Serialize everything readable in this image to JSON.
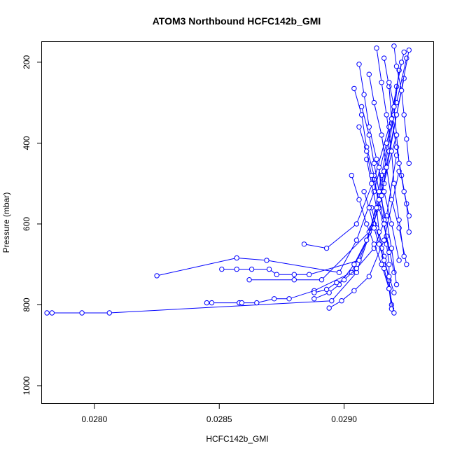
{
  "chart_data": {
    "type": "line",
    "title": "ATOM3 Northbound HCFC142b_GMI",
    "xlabel": "HCFC142b_GMI",
    "ylabel": "Pressure (mbar)",
    "xlim": [
      0.02779,
      0.02936
    ],
    "ylim": [
      1045,
      150
    ],
    "y_reversed": true,
    "xticks": [
      {
        "value": 0.028,
        "label": "0.0280"
      },
      {
        "value": 0.0285,
        "label": "0.0285"
      },
      {
        "value": 0.029,
        "label": "0.0290"
      }
    ],
    "yticks": [
      {
        "value": 200,
        "label": "200"
      },
      {
        "value": 400,
        "label": "400"
      },
      {
        "value": 600,
        "label": "600"
      },
      {
        "value": 800,
        "label": "800"
      },
      {
        "value": 1000,
        "label": "1000"
      }
    ],
    "grid": false,
    "legend": "none",
    "marker": "open-circle",
    "color": "#0000ff",
    "series": [
      {
        "x": [
          0.02781,
          0.02783,
          0.02795,
          0.02806,
          0.02895,
          0.02905,
          0.02911,
          0.02915,
          0.02919,
          0.02921,
          0.02924
        ],
        "y": [
          820,
          820,
          820,
          820,
          790,
          720,
          610,
          480,
          350,
          260,
          175
        ]
      },
      {
        "x": [
          0.02825,
          0.02857,
          0.02869,
          0.02898,
          0.02905,
          0.02912,
          0.02917,
          0.02921,
          0.02925
        ],
        "y": [
          728,
          684,
          690,
          720,
          640,
          520,
          400,
          300,
          190
        ]
      },
      {
        "x": [
          0.02845,
          0.02847,
          0.02858,
          0.02859,
          0.02865,
          0.02872,
          0.02878,
          0.02888,
          0.02903,
          0.02912,
          0.02916,
          0.0292,
          0.02922
        ],
        "y": [
          795,
          795,
          795,
          795,
          795,
          785,
          785,
          765,
          720,
          600,
          470,
          330,
          220
        ]
      },
      {
        "x": [
          0.02851,
          0.02857,
          0.02863,
          0.0287,
          0.02873,
          0.0288,
          0.02886,
          0.02906,
          0.02914,
          0.02918,
          0.02924
        ],
        "y": [
          712,
          712,
          712,
          712,
          725,
          725,
          725,
          690,
          560,
          420,
          240
        ]
      },
      {
        "x": [
          0.02862,
          0.0288,
          0.02891,
          0.0291,
          0.02916,
          0.02921,
          0.02926
        ],
        "y": [
          738,
          738,
          738,
          620,
          500,
          330,
          170
        ]
      },
      {
        "x": [
          0.02884,
          0.02893,
          0.02905,
          0.02912,
          0.02918,
          0.02923
        ],
        "y": [
          650,
          660,
          600,
          490,
          360,
          200
        ]
      },
      {
        "x": [
          0.02888,
          0.02894,
          0.02898,
          0.02904,
          0.02909,
          0.02915,
          0.02921
        ],
        "y": [
          785,
          770,
          750,
          700,
          640,
          520,
          380
        ]
      },
      {
        "x": [
          0.02894,
          0.02899,
          0.02904,
          0.0291,
          0.02916,
          0.02922
        ],
        "y": [
          808,
          790,
          765,
          730,
          640,
          470
        ]
      },
      {
        "x": [
          0.02888,
          0.02893,
          0.02897,
          0.029,
          0.02905,
          0.02912,
          0.02917,
          0.02921
        ],
        "y": [
          770,
          762,
          745,
          738,
          710,
          660,
          580,
          430
        ]
      },
      {
        "x": [
          0.02906,
          0.02908,
          0.0291,
          0.02913,
          0.02916,
          0.02919,
          0.02922
        ],
        "y": [
          205,
          280,
          360,
          440,
          520,
          600,
          690
        ]
      },
      {
        "x": [
          0.0291,
          0.02912,
          0.02915,
          0.02917,
          0.02919,
          0.02922,
          0.02925
        ],
        "y": [
          230,
          300,
          380,
          460,
          540,
          610,
          700
        ]
      },
      {
        "x": [
          0.02904,
          0.02907,
          0.02909,
          0.02912,
          0.02914,
          0.02917,
          0.0292
        ],
        "y": [
          265,
          330,
          410,
          480,
          560,
          630,
          720
        ]
      },
      {
        "x": [
          0.02913,
          0.02915,
          0.02917,
          0.02919,
          0.0292,
          0.02922,
          0.02924
        ],
        "y": [
          165,
          250,
          330,
          420,
          500,
          590,
          680
        ]
      },
      {
        "x": [
          0.02907,
          0.0291,
          0.02912,
          0.02914,
          0.02917,
          0.02919,
          0.02921
        ],
        "y": [
          310,
          380,
          450,
          520,
          590,
          660,
          750
        ]
      },
      {
        "x": [
          0.02916,
          0.02918,
          0.02919,
          0.02921,
          0.02923,
          0.02925,
          0.02926
        ],
        "y": [
          190,
          260,
          340,
          410,
          480,
          550,
          620
        ]
      },
      {
        "x": [
          0.02909,
          0.02911,
          0.02913,
          0.02914,
          0.02916,
          0.02918,
          0.02919
        ],
        "y": [
          440,
          500,
          560,
          620,
          680,
          740,
          800
        ]
      },
      {
        "x": [
          0.02914,
          0.02915,
          0.02916,
          0.02917,
          0.02918,
          0.02918,
          0.02919
        ],
        "y": [
          460,
          530,
          590,
          650,
          700,
          760,
          810
        ]
      },
      {
        "x": [
          0.02903,
          0.02906,
          0.02909,
          0.02912,
          0.02915,
          0.02918
        ],
        "y": [
          480,
          540,
          600,
          650,
          700,
          760
        ]
      },
      {
        "x": [
          0.02918,
          0.0292,
          0.02921,
          0.02922,
          0.02924,
          0.02926
        ],
        "y": [
          250,
          310,
          380,
          450,
          520,
          580
        ]
      },
      {
        "x": [
          0.02911,
          0.02913,
          0.02915,
          0.02916,
          0.02918,
          0.0292
        ],
        "y": [
          560,
          610,
          660,
          710,
          760,
          820
        ]
      },
      {
        "x": [
          0.02906,
          0.02909,
          0.02911,
          0.02914,
          0.02916,
          0.02918
        ],
        "y": [
          360,
          420,
          480,
          540,
          600,
          670
        ]
      },
      {
        "x": [
          0.0292,
          0.02921,
          0.02923,
          0.02924,
          0.02925,
          0.02926
        ],
        "y": [
          160,
          210,
          270,
          330,
          390,
          450
        ]
      },
      {
        "x": [
          0.02908,
          0.0291,
          0.02912,
          0.02914,
          0.02916,
          0.02918,
          0.0292
        ],
        "y": [
          520,
          560,
          610,
          650,
          690,
          730,
          770
        ]
      }
    ]
  }
}
